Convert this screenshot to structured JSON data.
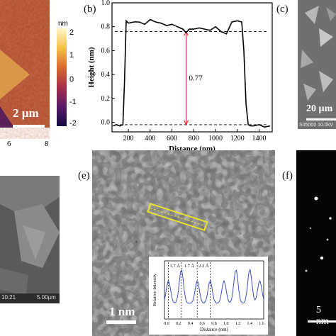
{
  "panels": {
    "a": {
      "colorbar_unit": "nm",
      "colorbar_ticks": [
        "2",
        "1",
        "0",
        "-1",
        "-2"
      ],
      "x_ticks": [
        "6",
        "8"
      ],
      "scalebar_text": "2 µm"
    },
    "b": {
      "label": "(b)"
    },
    "c": {
      "label": "(c)",
      "scalebar_text": "20 µm",
      "footer_text": "S05000 10.0kV"
    },
    "d": {
      "footer_left": "10:21",
      "footer_right": "5.00µm"
    },
    "e": {
      "label": "(e)",
      "scalebar_text": "1 nm",
      "inset": {
        "ylabel": "Relative Intensity",
        "xlabel": "Distance (nm)",
        "annotations": [
          "1.7 Å",
          "1.7 Å",
          "2.2 Å"
        ],
        "x_ticks": [
          "0.0",
          "0.2",
          "0.4",
          "0.6",
          "0.8",
          "1.0",
          "1.2",
          "1.4",
          "1.6"
        ]
      }
    },
    "f": {
      "label": "(f)",
      "scalebar_text": "5 nm"
    }
  },
  "chart_data": {
    "type": "line",
    "xlabel": "Distance (nm)",
    "ylabel": "Height (nm)",
    "xlim": [
      50,
      1520
    ],
    "ylim": [
      -0.08,
      1.0
    ],
    "x_ticks": [
      200,
      400,
      600,
      800,
      1000,
      1200,
      1400
    ],
    "y_ticks": [
      0.0,
      0.2,
      0.4,
      0.6,
      0.8,
      1.0
    ],
    "annotation": "0.77",
    "reference_lines": [
      0.76,
      -0.02
    ],
    "x": [
      60,
      90,
      120,
      150,
      165,
      180,
      200,
      250,
      300,
      350,
      400,
      450,
      500,
      550,
      600,
      650,
      700,
      730,
      760,
      800,
      850,
      900,
      950,
      1000,
      1050,
      1100,
      1150,
      1200,
      1240,
      1260,
      1280,
      1300,
      1320,
      1350,
      1400,
      1450,
      1500
    ],
    "y": [
      -0.03,
      -0.02,
      -0.03,
      -0.02,
      0.35,
      0.85,
      0.83,
      0.84,
      0.84,
      0.82,
      0.86,
      0.84,
      0.83,
      0.81,
      0.82,
      0.8,
      0.78,
      0.75,
      0.78,
      0.78,
      0.79,
      0.78,
      0.77,
      0.8,
      0.76,
      0.74,
      0.84,
      0.85,
      0.84,
      0.6,
      0.15,
      -0.02,
      -0.03,
      -0.03,
      -0.02,
      -0.04,
      -0.03
    ]
  }
}
